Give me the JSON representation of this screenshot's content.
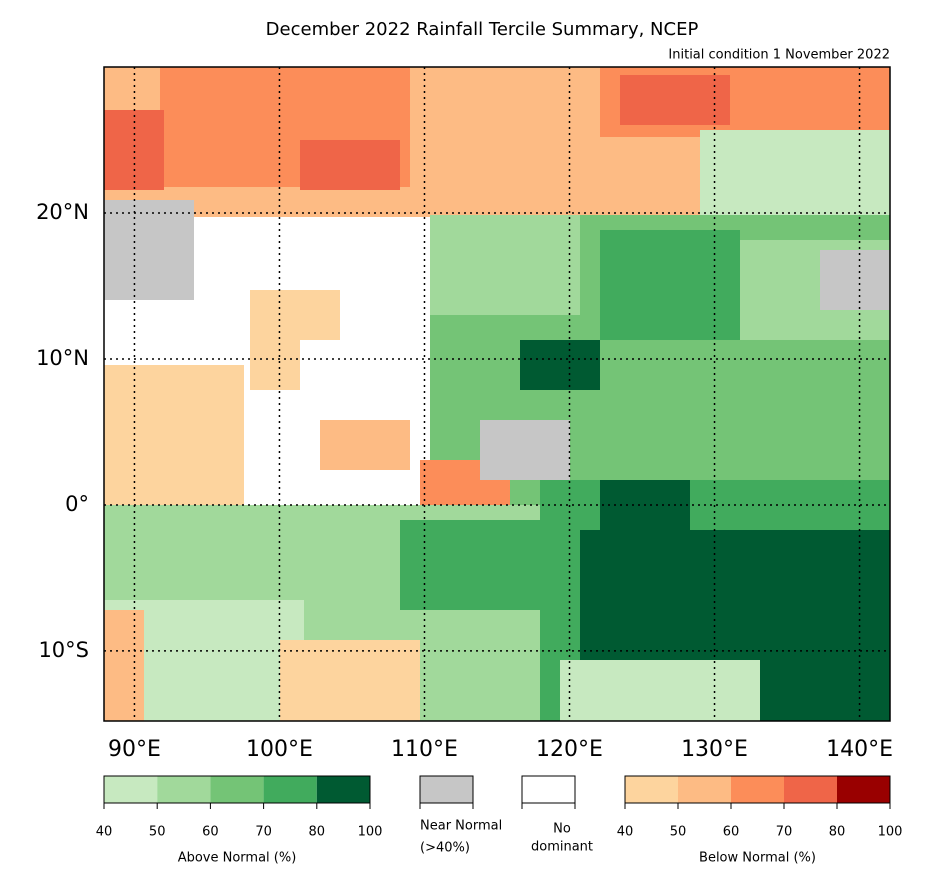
{
  "title": "December 2022 Rainfall Tercile Summary, NCEP",
  "subtitle": "Initial condition 1 November 2022",
  "map": {
    "lon_range": [
      87.9,
      142.1
    ],
    "lat_range": [
      -14.8,
      30
    ],
    "lon_ticks": [
      {
        "value": 90,
        "label": "90°E"
      },
      {
        "value": 100,
        "label": "100°E"
      },
      {
        "value": 110,
        "label": "110°E"
      },
      {
        "value": 120,
        "label": "120°E"
      },
      {
        "value": 130,
        "label": "130°E"
      },
      {
        "value": 140,
        "label": "140°E"
      }
    ],
    "lat_ticks": [
      {
        "value": 20,
        "label": "20°N"
      },
      {
        "value": 10,
        "label": "10°N"
      },
      {
        "value": 0,
        "label": "0°"
      },
      {
        "value": -10,
        "label": "10°S"
      }
    ]
  },
  "legend": {
    "above": {
      "label": "Above Normal (%)",
      "ticks": [
        40,
        50,
        60,
        70,
        80,
        100
      ],
      "colors": [
        "#c7e9c0",
        "#a1d99b",
        "#74c476",
        "#41ab5d",
        "#005a32"
      ]
    },
    "near_normal": {
      "lines": [
        "Near Normal",
        "(>40%)"
      ],
      "color": "#c6c6c6"
    },
    "no_dominant": {
      "lines": [
        "No",
        "dominant"
      ],
      "color": "#ffffff"
    },
    "below": {
      "label": "Below Normal (%)",
      "ticks": [
        40,
        50,
        60,
        70,
        80,
        100
      ],
      "colors": [
        "#fdd49e",
        "#fdbb84",
        "#fc8d59",
        "#ef6548",
        "#990000"
      ]
    }
  }
}
